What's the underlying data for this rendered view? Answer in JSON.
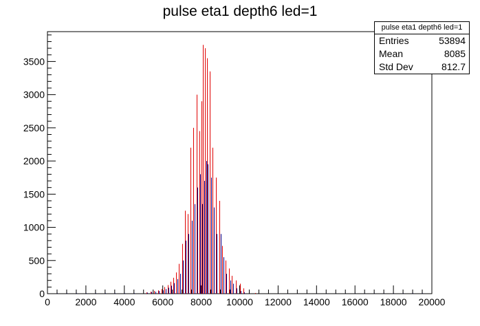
{
  "chart_data": {
    "type": "bar",
    "title": "pulse eta1 depth6 led=1",
    "xlim": [
      0,
      20000
    ],
    "ylim": [
      0,
      3950
    ],
    "x_ticks": [
      0,
      2000,
      4000,
      6000,
      8000,
      10000,
      12000,
      14000,
      16000,
      18000,
      20000
    ],
    "y_ticks": [
      0,
      500,
      1000,
      1500,
      2000,
      2500,
      3000,
      3500
    ],
    "grid": false,
    "series": [
      {
        "color": "#e00000",
        "x": [
          5150,
          5350,
          5550,
          5750,
          5950,
          6100,
          6250,
          6400,
          6550,
          6700,
          6850,
          7000,
          7150,
          7300,
          7450,
          7600,
          7750,
          7900,
          8000,
          8100,
          8200,
          8300,
          8450,
          8600,
          8750,
          8950,
          9100,
          9250,
          9450,
          9600,
          9800,
          10000,
          10200,
          10500,
          10800
        ],
        "values": [
          20,
          30,
          40,
          50,
          70,
          100,
          130,
          180,
          240,
          320,
          450,
          750,
          1250,
          1200,
          2200,
          2500,
          3000,
          2450,
          2900,
          3750,
          3700,
          3550,
          3350,
          2200,
          1750,
          1400,
          720,
          500,
          380,
          270,
          200,
          150,
          80,
          30,
          10
        ]
      },
      {
        "color": "#00008b",
        "x": [
          5200,
          5400,
          5600,
          5800,
          6000,
          6150,
          6300,
          6450,
          6600,
          6750,
          6900,
          7050,
          7200,
          7350,
          7500,
          7650,
          7800,
          7950,
          8050,
          8150,
          8250,
          8350,
          8500,
          8650,
          8800,
          9000,
          9150,
          9300,
          9500,
          9650,
          9850,
          10050,
          10250
        ],
        "values": [
          15,
          25,
          30,
          40,
          50,
          70,
          90,
          120,
          160,
          220,
          300,
          500,
          800,
          900,
          1100,
          1350,
          1600,
          1800,
          1350,
          1700,
          2000,
          1950,
          1750,
          1300,
          900,
          900,
          550,
          300,
          200,
          150,
          80,
          40,
          20
        ]
      },
      {
        "color": "#00008b",
        "x": [
          500,
          1000,
          1500,
          2000,
          2500,
          3000,
          3500,
          4000,
          4500,
          12000,
          12500,
          13000,
          13500,
          14000,
          14500,
          15000,
          15500,
          16000,
          16500,
          17000,
          17500,
          18000,
          18500,
          19000,
          19500
        ],
        "values": [
          8,
          8,
          8,
          8,
          8,
          8,
          8,
          8,
          8,
          8,
          8,
          8,
          8,
          8,
          8,
          8,
          8,
          8,
          8,
          8,
          8,
          8,
          8,
          8,
          8
        ]
      }
    ]
  },
  "stats": {
    "title": "pulse eta1 depth6 led=1",
    "rows": [
      {
        "label": "Entries",
        "value": "53894"
      },
      {
        "label": "Mean",
        "value": "8085"
      },
      {
        "label": "Std Dev",
        "value": "812.7"
      }
    ]
  }
}
